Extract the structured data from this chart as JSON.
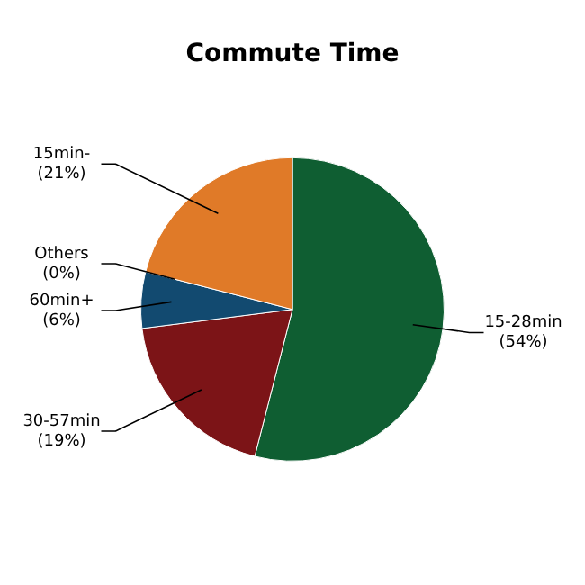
{
  "chart_data": {
    "type": "pie",
    "title": "Commute Time",
    "categories": [
      "15-28min",
      "30-57min",
      "60min+",
      "Others",
      "15min-"
    ],
    "values": [
      54,
      19,
      6,
      0,
      21
    ],
    "value_labels": [
      "(54%)",
      "(19%)",
      "(6%)",
      "(0%)",
      "(21%)"
    ],
    "colors": [
      "#0f5e32",
      "#7c1417",
      "#124a70",
      "#5a5a5a",
      "#e07a28"
    ],
    "legend": false
  }
}
